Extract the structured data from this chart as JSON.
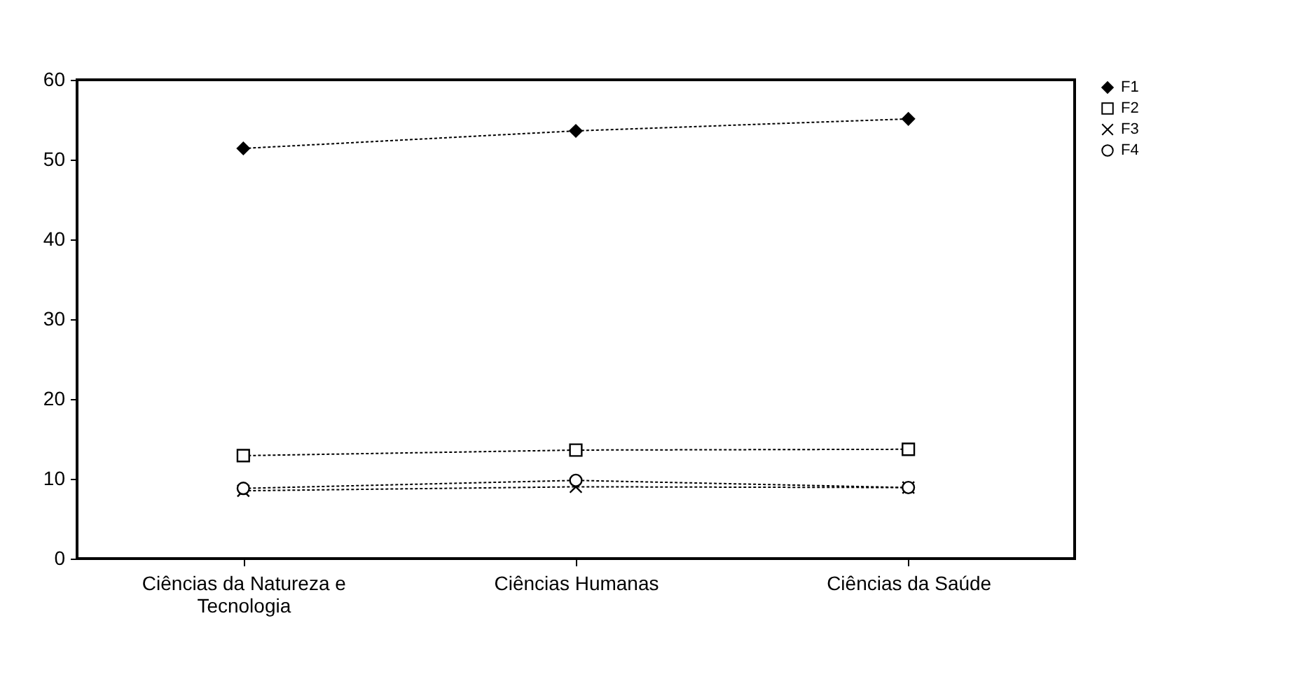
{
  "chart_data": {
    "type": "line",
    "categories": [
      "Ciências da Natureza e Tecnologia",
      "Ciências Humanas",
      "Ciências da Saúde"
    ],
    "series": [
      {
        "name": "F1",
        "color": "#000000",
        "marker": "diamond",
        "values": [
          51.4,
          53.6,
          55.1
        ]
      },
      {
        "name": "F2",
        "color": "#000000",
        "marker": "square",
        "values": [
          12.9,
          13.6,
          13.7
        ]
      },
      {
        "name": "F3",
        "color": "#000000",
        "marker": "cross",
        "values": [
          8.5,
          9.0,
          8.9
        ]
      },
      {
        "name": "F4",
        "color": "#000000",
        "marker": "circle",
        "values": [
          8.8,
          9.8,
          8.9
        ]
      }
    ],
    "ylim": [
      0,
      60
    ],
    "yticks": [
      0,
      10,
      20,
      30,
      40,
      50,
      60
    ],
    "grid": false,
    "legend": "right",
    "line_style": "dotted"
  }
}
